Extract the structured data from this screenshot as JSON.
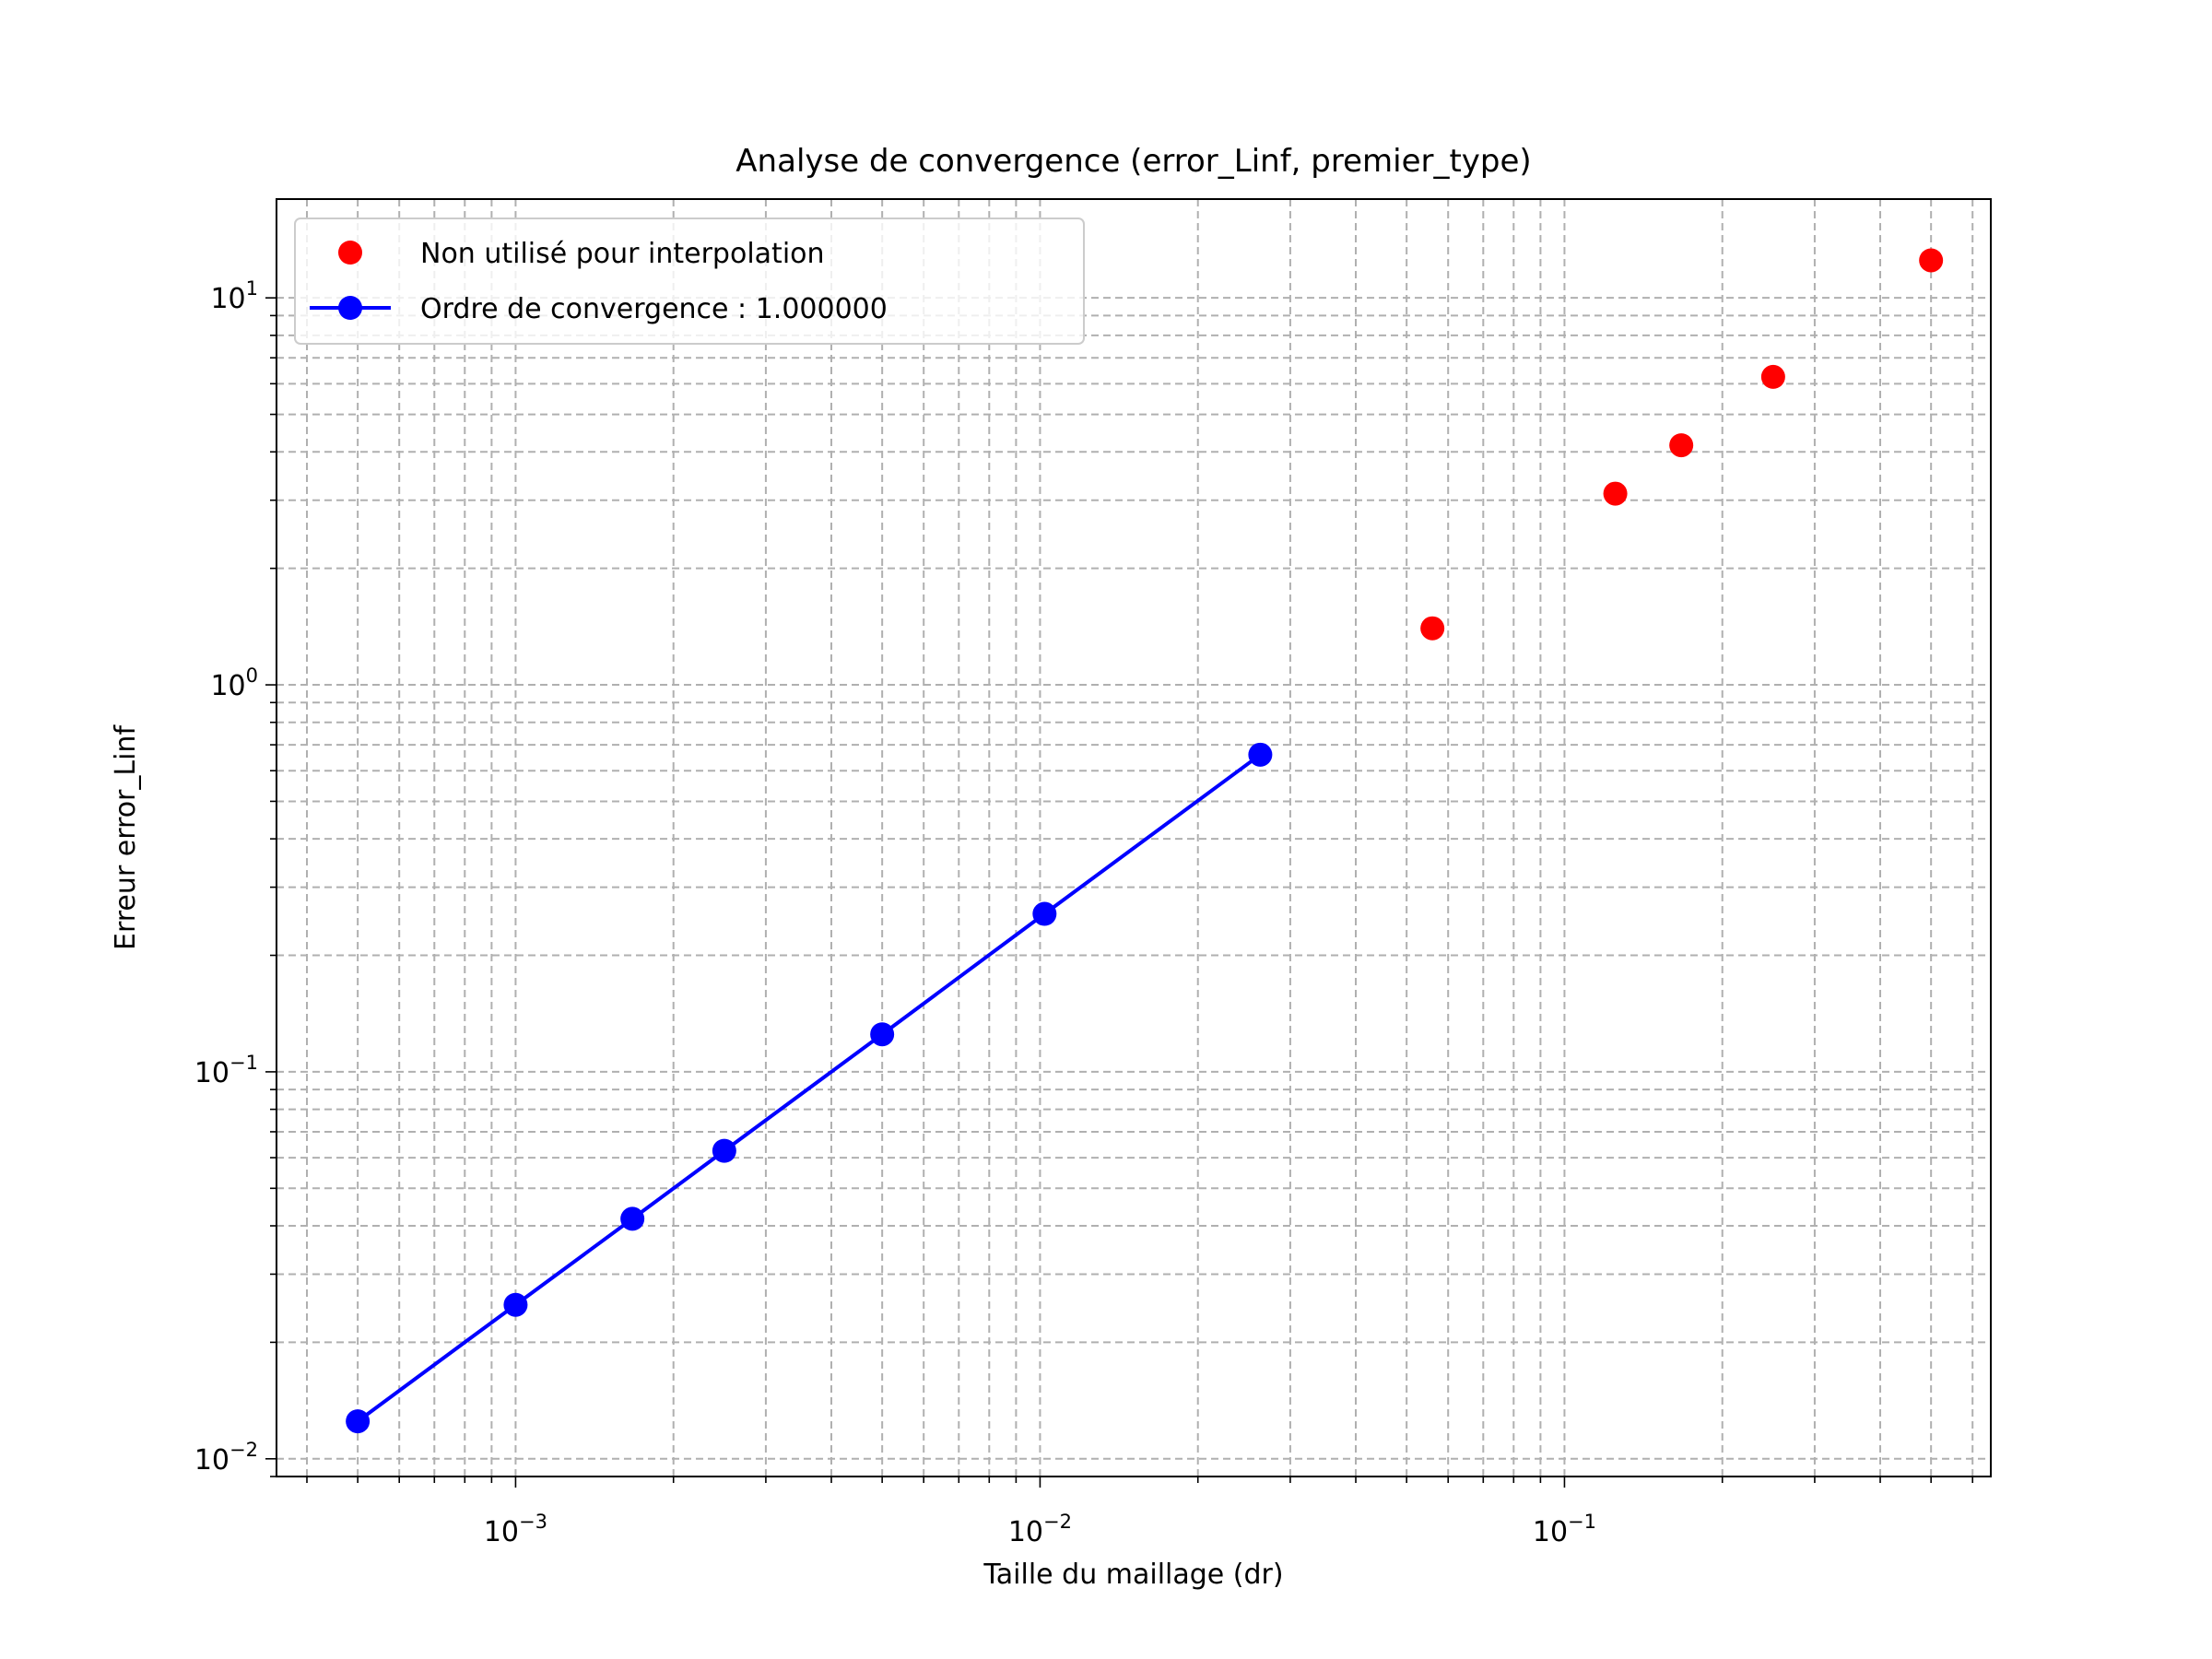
{
  "chart_data": {
    "type": "scatter",
    "title": "Analyse de convergence (error_Linf, premier_type)",
    "xlabel": "Taille du maillage (dr)",
    "ylabel": "Erreur error_Linf",
    "xscale": "log",
    "yscale": "log",
    "xlim": [
      0.00035,
      0.65
    ],
    "ylim": [
      0.009,
      18
    ],
    "grid": "major and minor, dashed",
    "legend_position": "upper left",
    "x_ticks": [
      0.001,
      0.01,
      0.1
    ],
    "x_tick_labels": [
      {
        "base": "10",
        "exp": "−3"
      },
      {
        "base": "10",
        "exp": "−2"
      },
      {
        "base": "10",
        "exp": "−1"
      }
    ],
    "y_ticks": [
      0.01,
      0.1,
      1,
      10
    ],
    "y_tick_labels": [
      {
        "base": "10",
        "exp": "−2"
      },
      {
        "base": "10",
        "exp": "−1"
      },
      {
        "base": "10",
        "exp": "0"
      },
      {
        "base": "10",
        "exp": "1"
      }
    ],
    "series": [
      {
        "name": "Non utilisé pour interpolation",
        "color": "#ff0000",
        "marker": "circle",
        "line": false,
        "x": [
          0.056,
          0.125,
          0.167,
          0.25,
          0.5
        ],
        "y": [
          1.4,
          3.12,
          4.16,
          6.25,
          12.5
        ]
      },
      {
        "name": "Ordre de convergence : 1.000000",
        "color": "#0000ff",
        "marker": "circle",
        "line": true,
        "x": [
          0.0005,
          0.001,
          0.00167,
          0.0025,
          0.005,
          0.0102,
          0.0263
        ],
        "y": [
          0.0125,
          0.025,
          0.0417,
          0.0625,
          0.125,
          0.256,
          0.66
        ]
      }
    ]
  }
}
